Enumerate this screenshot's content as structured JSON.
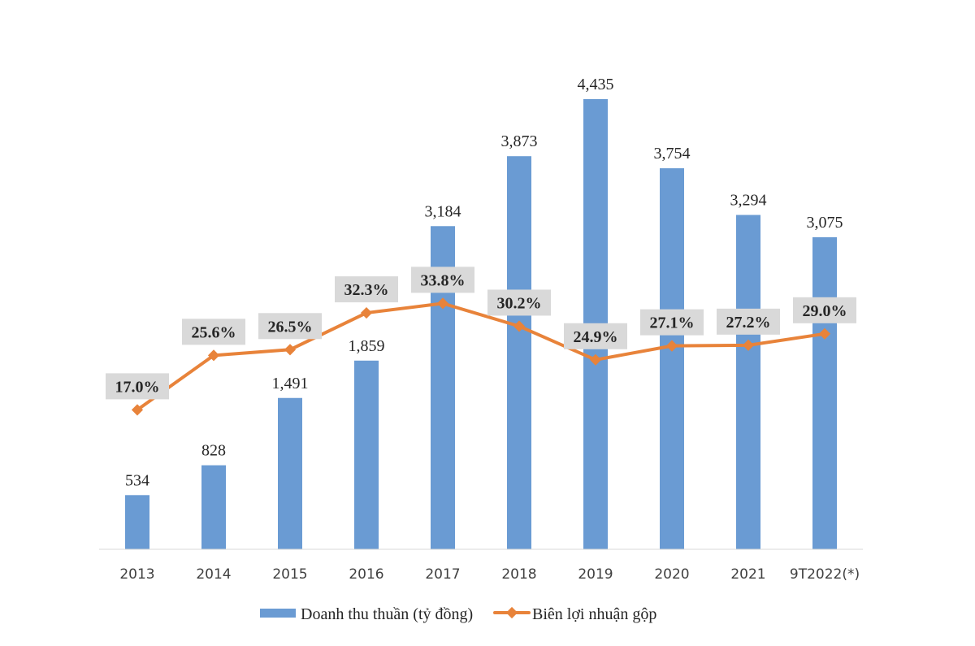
{
  "chart_data": {
    "type": "bar+line",
    "categories": [
      "2013",
      "2014",
      "2015",
      "2016",
      "2017",
      "2018",
      "2019",
      "2020",
      "2021",
      "9T2022(*)"
    ],
    "series": [
      {
        "name": "Doanh thu thuần (tỷ đồng)",
        "type": "bar",
        "axis": "primary",
        "color": "#6A9BD3",
        "values": [
          534,
          828,
          1491,
          1859,
          3184,
          3873,
          4435,
          3754,
          3294,
          3075
        ],
        "labels": [
          "534",
          "828",
          "1,491",
          "1,859",
          "3,184",
          "3,873",
          "4,435",
          "3,754",
          "3,294",
          "3,075"
        ]
      },
      {
        "name": "Biên lợi nhuận gộp",
        "type": "line",
        "axis": "secondary",
        "color": "#E8833A",
        "marker": "diamond",
        "values": [
          17.0,
          25.6,
          26.5,
          32.3,
          33.8,
          30.2,
          24.9,
          27.1,
          27.2,
          29.0
        ],
        "labels": [
          "17.0%",
          "25.6%",
          "26.5%",
          "32.3%",
          "33.8%",
          "30.2%",
          "24.9%",
          "27.1%",
          "27.2%",
          "29.0%"
        ],
        "label_box_color": "#D9D9D9"
      }
    ],
    "y_axis_visible": false,
    "grid": false,
    "legend": "bottom"
  }
}
